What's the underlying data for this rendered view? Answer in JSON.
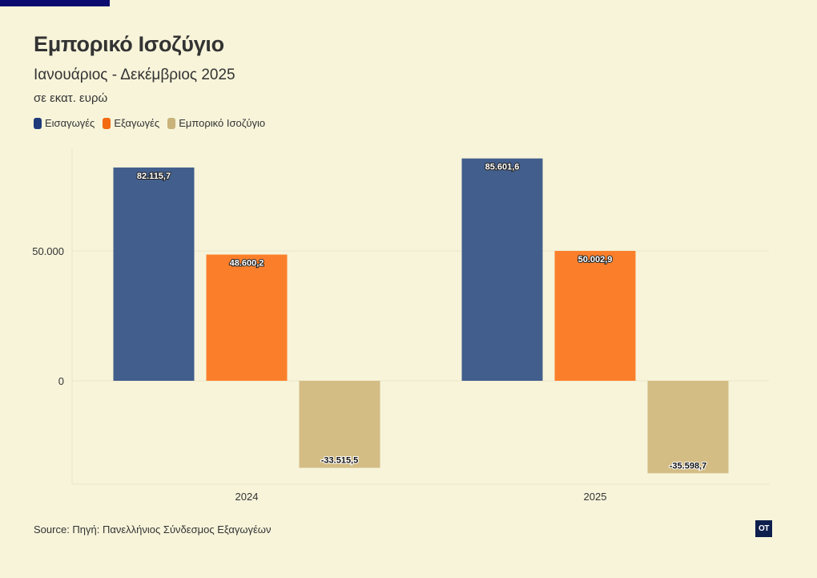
{
  "header": {
    "title": "Εμπορικό Ισοζύγιο",
    "subtitle": "Ιανουάριος - Δεκέμβριος 2025",
    "unit": "σε εκατ. ευρώ"
  },
  "footer": {
    "source": "Source: Πηγή: Πανελλήνιος Σύνδεσμος Εξαγωγέων",
    "logo_text": "OT"
  },
  "colors": {
    "background": "#f7f4da",
    "imports": "#425e8c",
    "exports": "#fb7f2b",
    "balance": "#d4bd85",
    "accent": "#0b0a6f",
    "legend_imports": "#1f3a7a",
    "legend_exports": "#f36a10",
    "legend_balance": "#c9b37a"
  },
  "chart_data": {
    "type": "bar",
    "title": "Εμπορικό Ισοζύγιο",
    "subtitle": "Ιανουάριος - Δεκέμβριος 2025",
    "ylabel": "",
    "xlabel": "",
    "categories": [
      "2024",
      "2025"
    ],
    "series": [
      {
        "name": "Εισαγωγές",
        "values": [
          82115.7,
          85601.6
        ],
        "labels": [
          "82.115,7",
          "85.601,6"
        ],
        "color": "#425e8c"
      },
      {
        "name": "Εξαγωγές",
        "values": [
          48600.2,
          50002.9
        ],
        "labels": [
          "48.600,2",
          "50.002,9"
        ],
        "color": "#fb7f2b"
      },
      {
        "name": "Εμπορικό Ισοζύγιο",
        "values": [
          -33515.5,
          -35598.7
        ],
        "labels": [
          "-33.515,5",
          "-35.598,7"
        ],
        "color": "#d4bd85"
      }
    ],
    "yticks": [
      0,
      50000
    ],
    "ytick_labels": [
      "0",
      "50.000"
    ],
    "ylim": [
      -40000,
      90000
    ],
    "legend": "top-left",
    "grid": true
  }
}
